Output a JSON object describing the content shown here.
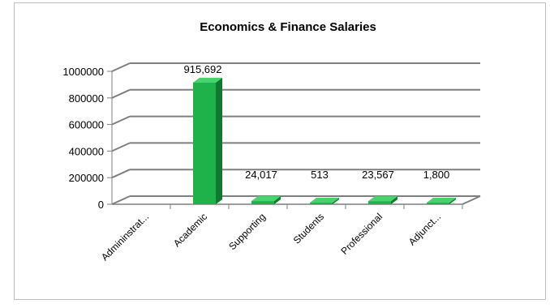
{
  "chart_data": {
    "type": "bar",
    "title": "Economics & Finance Salaries",
    "categories": [
      "Admininstrat...",
      "Academic",
      "Supporting",
      "Students",
      "Professional",
      "Adjunct..."
    ],
    "values": [
      0,
      915692,
      24017,
      513,
      23567,
      1800
    ],
    "data_labels": [
      "",
      "915,692",
      "24,017",
      "513",
      "23,567",
      "1,800"
    ],
    "y_ticks": [
      "0",
      "200000",
      "400000",
      "600000",
      "800000",
      "1000000"
    ],
    "ylim": [
      0,
      1000000
    ],
    "xlabel": "",
    "ylabel": "",
    "grid": true,
    "legend": "none",
    "style": "3d-column"
  },
  "colors": {
    "bar_front": "#1fb24a",
    "bar_side": "#0f7a2e",
    "bar_top": "#48d36c",
    "grid": "#7f7f7f",
    "frame": "#bfbfbf"
  }
}
